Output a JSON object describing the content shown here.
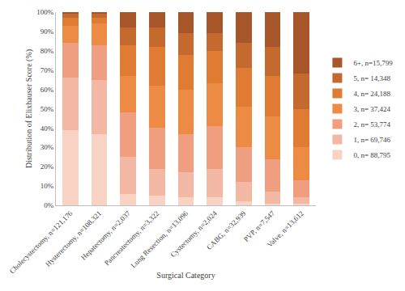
{
  "chart_data": {
    "type": "bar",
    "stacked": true,
    "x_label": "Surgical Category",
    "y_label": "Distribution of Elixhauser Score (%)",
    "categories": [
      "Cholecystectomy, n=121,176",
      "Hysterectomy, n=108,321",
      "Hepatectomy, n=2,037",
      "Pancreatectomy, n=3,322",
      "Lung Resection, n=13,096",
      "Cystectomy, n=2,024",
      "CABG, n=32,939",
      "PVP, n=7,547",
      "Valve, n=13,612"
    ],
    "series": [
      {
        "name": "0, n= 88,795",
        "color": "#f8d3c4",
        "values": [
          39,
          37,
          6,
          5,
          4,
          4,
          2,
          1,
          1
        ]
      },
      {
        "name": "1, n= 69,746",
        "color": "#f3b8a3",
        "values": [
          27,
          28,
          19,
          14,
          13,
          15,
          10,
          6,
          3
        ]
      },
      {
        "name": "2, n= 53,774",
        "color": "#ef9e80",
        "values": [
          18,
          18,
          23,
          21,
          20,
          22,
          18,
          17,
          9
        ]
      },
      {
        "name": "3, n= 37,424",
        "color": "#ed8b45",
        "values": [
          9,
          11,
          19,
          22,
          23,
          22,
          21,
          22,
          17
        ]
      },
      {
        "name": "4, n= 24,188",
        "color": "#e07b33",
        "values": [
          4,
          3,
          16,
          20,
          18,
          17,
          20,
          21,
          20
        ]
      },
      {
        "name": "5, n= 14,348",
        "color": "#c46a2e",
        "values": [
          2,
          2,
          9,
          10,
          11,
          9,
          13,
          15,
          18
        ]
      },
      {
        "name": "6+, n=15,799",
        "color": "#a65628",
        "values": [
          1,
          1,
          8,
          8,
          11,
          11,
          16,
          18,
          32
        ]
      }
    ],
    "ylim": [
      0,
      100
    ],
    "yticks": [
      {
        "value": 0,
        "label": "0%"
      },
      {
        "value": 10,
        "label": "10%"
      },
      {
        "value": 20,
        "label": "20%"
      },
      {
        "value": 30,
        "label": "30%"
      },
      {
        "value": 40,
        "label": "40%"
      },
      {
        "value": 50,
        "label": "50%"
      },
      {
        "value": 60,
        "label": "60%"
      },
      {
        "value": 70,
        "label": "70%"
      },
      {
        "value": 80,
        "label": "80%"
      },
      {
        "value": 90,
        "label": "90%"
      },
      {
        "value": 100,
        "label": "100%"
      }
    ],
    "grid": false,
    "legend": "right"
  }
}
